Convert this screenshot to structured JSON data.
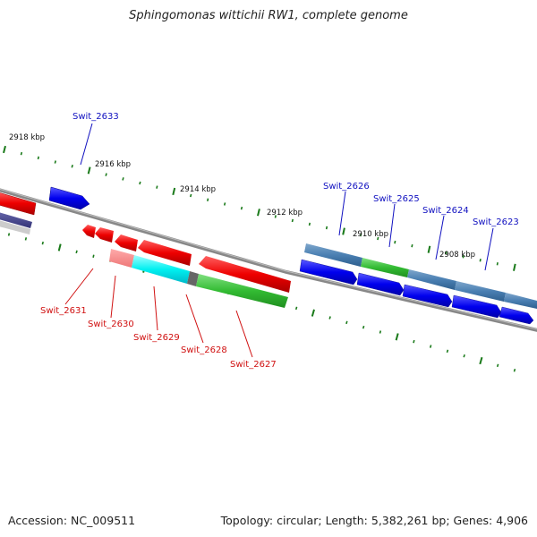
{
  "title": "Sphingomonas wittichii RW1, complete genome",
  "footer": {
    "accession": "Accession: NC_009511",
    "topology": "Topology: circular; Length: 5,382,261 bp; Genes: 4,906"
  },
  "scale_labels": [
    "2918 kbp",
    "2916 kbp",
    "2914 kbp",
    "2912 kbp",
    "2910 kbp",
    "2908 kbp"
  ],
  "gene_labels": {
    "top": [
      "Swit_2633",
      "Swit_2626",
      "Swit_2625",
      "Swit_2624",
      "Swit_2623"
    ],
    "bottom": [
      "Swit_2631",
      "Swit_2630",
      "Swit_2629",
      "Swit_2628",
      "Swit_2627"
    ]
  },
  "colors": {
    "forward_gene": "#0000ee",
    "reverse_gene": "#ee0000",
    "backbone": "#888888",
    "tick": "#1a7a1a",
    "label_top": "#1010c0",
    "label_bottom": "#d01010"
  }
}
